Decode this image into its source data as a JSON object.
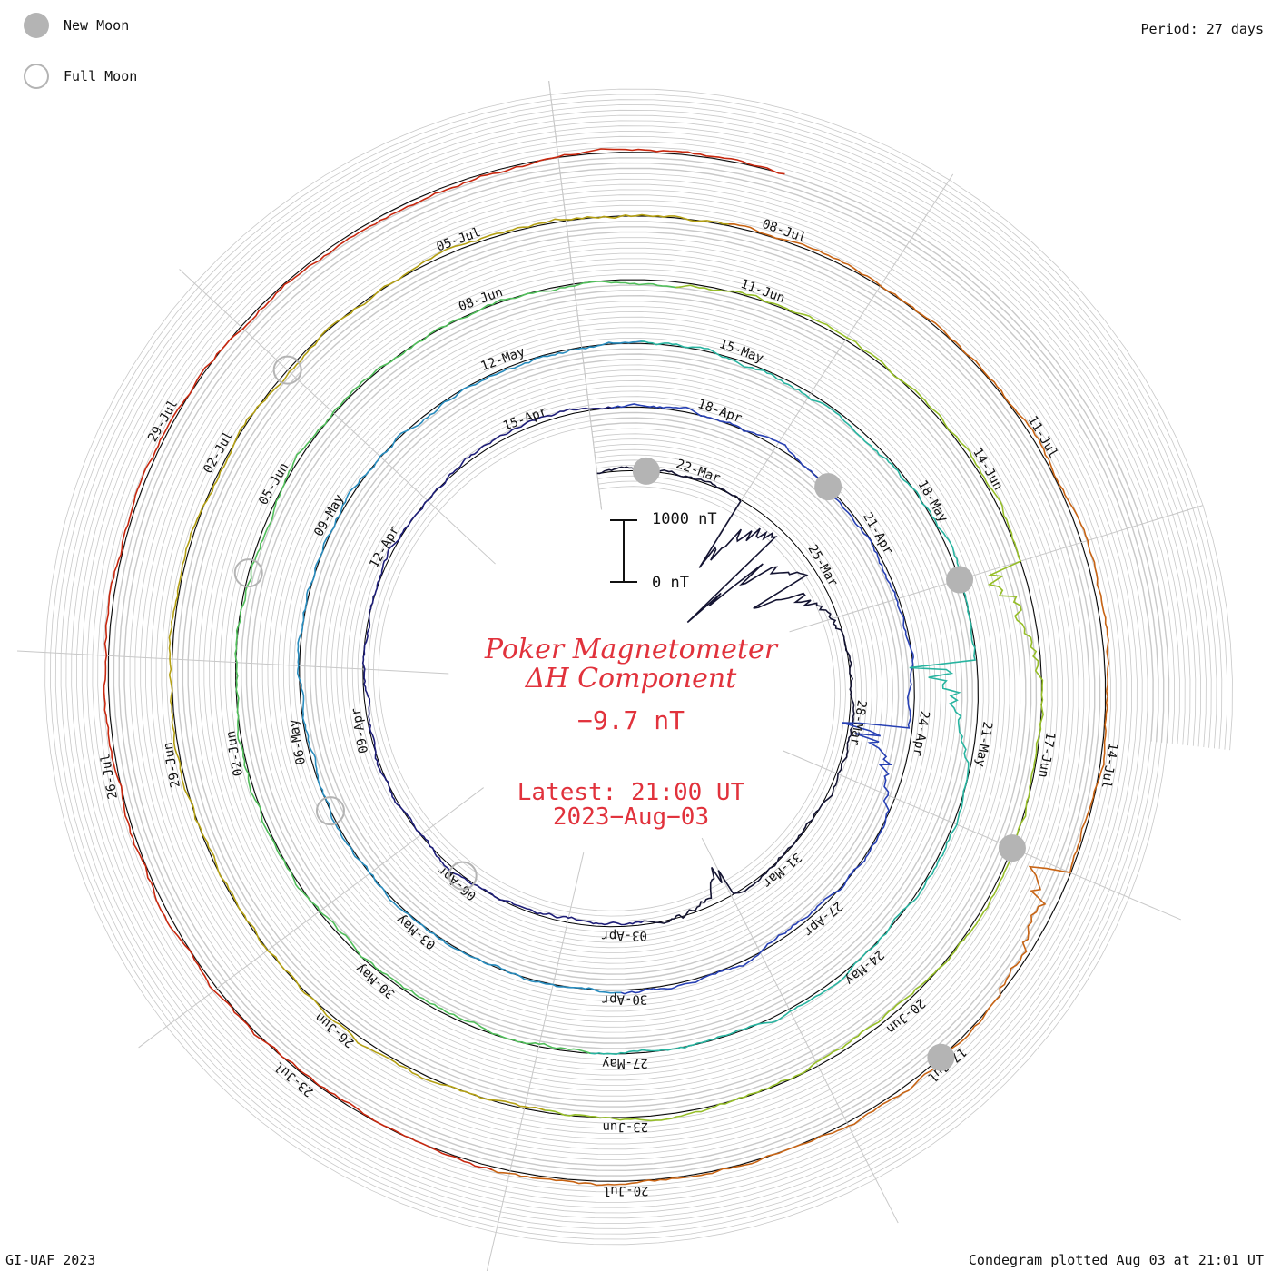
{
  "legend": {
    "new_moon_label": "New Moon",
    "full_moon_label": "Full Moon",
    "new_moon_color": "#b4b4b4",
    "full_moon_color": "#b4b4b4"
  },
  "period_label": "Period: 27 days",
  "footer_left": "GI-UAF 2023",
  "footer_right": "Condegram plotted Aug 03 at 21:01 UT",
  "title": {
    "line1": "Poker Magnetometer",
    "line2": "ΔH Component",
    "value": "−9.7 nT",
    "latest_line1": "Latest: 21:00 UT",
    "latest_line2": "2023−Aug−03",
    "color": "#e1323c"
  },
  "scale_bar": {
    "top_label": "1000 nT",
    "bottom_label": "0 nT"
  },
  "chart_data": {
    "type": "line",
    "layout": "spiral condegram",
    "period_days": 27,
    "start_date": "2023-03-20",
    "end_date": "2023-08-03",
    "series": [
      {
        "color": "#141432",
        "range": [
          "2023-03-20",
          "2023-04-16"
        ]
      },
      {
        "color": "#23239b",
        "range": [
          "2023-04-16",
          "2023-05-13"
        ]
      },
      {
        "color": "#3caab4",
        "range": [
          "2023-05-13",
          "2023-06-09"
        ]
      },
      {
        "color": "#55be5a",
        "range": [
          "2023-06-09",
          "2023-07-06"
        ]
      },
      {
        "color": "#b4b414",
        "range": [
          "2023-07-06",
          "2023-08-03"
        ]
      }
    ],
    "gradient_colors": [
      "#141432",
      "#1e1e78",
      "#2841b4",
      "#288cbe",
      "#28b4a0",
      "#50be5a",
      "#96be28",
      "#b4a014",
      "#c86414",
      "#c8280f"
    ],
    "date_labels": [
      "22-Mar",
      "25-Mar",
      "28-Mar",
      "31-Mar",
      "03-Apr",
      "06-Apr",
      "09-Apr",
      "12-Apr",
      "15-Apr",
      "18-Apr",
      "21-Apr",
      "24-Apr",
      "27-Apr",
      "30-Apr",
      "03-May",
      "06-May",
      "09-May",
      "12-May",
      "15-May",
      "18-May",
      "21-May",
      "24-May",
      "27-May",
      "30-May",
      "02-Jun",
      "05-Jun",
      "08-Jun",
      "11-Jun",
      "14-Jun",
      "17-Jun",
      "20-Jun",
      "23-Jun",
      "26-Jun",
      "29-Jun",
      "02-Jul",
      "05-Jul",
      "08-Jul",
      "11-Jul",
      "14-Jul",
      "17-Jul",
      "20-Jul",
      "23-Jul",
      "26-Jul",
      "29-Jul"
    ],
    "new_moon_dates": [
      "2023-03-21",
      "2023-04-20",
      "2023-05-19",
      "2023-06-18",
      "2023-07-17"
    ],
    "full_moon_dates": [
      "2023-04-06",
      "2023-05-05",
      "2023-06-04",
      "2023-07-03"
    ],
    "disturbances": [
      {
        "date": "2023-03-23",
        "amplitude_nT": 1300
      },
      {
        "date": "2023-03-24",
        "amplitude_nT": 1800
      },
      {
        "date": "2023-03-25",
        "amplitude_nT": 900
      },
      {
        "date": "2023-04-01",
        "amplitude_nT": 500
      },
      {
        "date": "2023-04-24",
        "amplitude_nT": 1000
      },
      {
        "date": "2023-05-20",
        "amplitude_nT": 900
      },
      {
        "date": "2023-06-15",
        "amplitude_nT": 700
      },
      {
        "date": "2023-07-15",
        "amplitude_nT": 700
      }
    ],
    "grid": true
  }
}
